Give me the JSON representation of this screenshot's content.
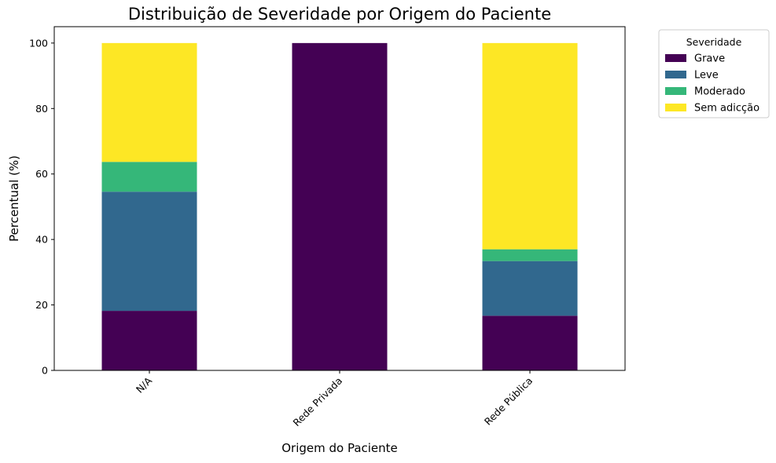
{
  "chart_data": {
    "type": "bar",
    "stacked": true,
    "title": "Distribuição de Severidade por Origem do Paciente",
    "xlabel": "Origem do Paciente",
    "ylabel": "Percentual (%)",
    "ylim": [
      0,
      105
    ],
    "yticks": [
      0,
      20,
      40,
      60,
      80,
      100
    ],
    "grid": false,
    "legend_position": "outside-top-right",
    "legend_title": "Severidade",
    "categories": [
      "N/A",
      "Rede Privada",
      "Rede Pública"
    ],
    "series": [
      {
        "name": "Grave",
        "color": "#440154",
        "values": [
          18.2,
          100,
          16.7
        ]
      },
      {
        "name": "Leve",
        "color": "#31688e",
        "values": [
          36.4,
          0,
          16.7
        ]
      },
      {
        "name": "Moderado",
        "color": "#35b779",
        "values": [
          9.1,
          0,
          3.6
        ]
      },
      {
        "name": "Sem adicção",
        "color": "#fde725",
        "values": [
          36.3,
          0,
          63.0
        ]
      }
    ]
  }
}
